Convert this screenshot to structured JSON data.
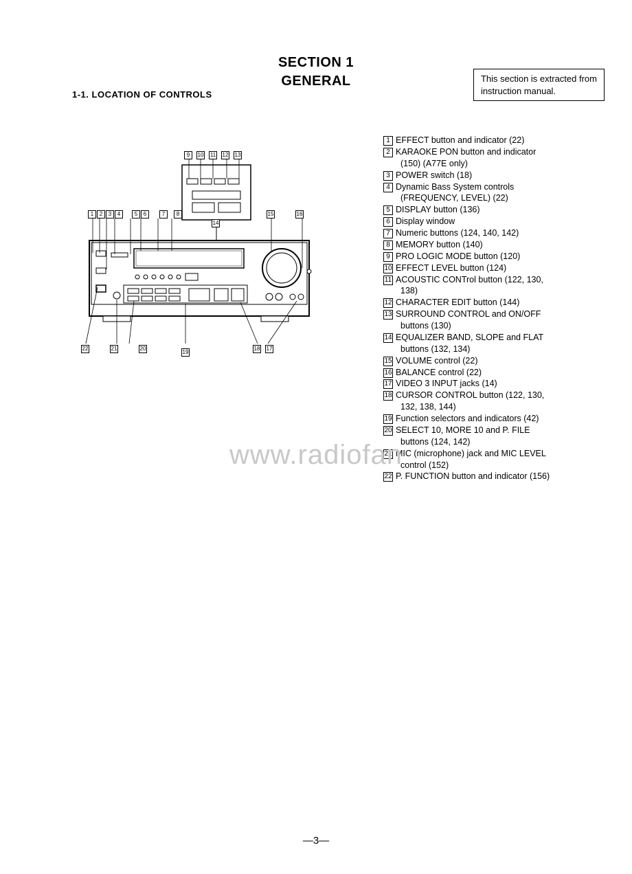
{
  "header": {
    "section_line1": "SECTION 1",
    "section_line2": "GENERAL",
    "note_line1": "This section is extracted from",
    "note_line2": "instruction manual.",
    "subsection": "1-1.   LOCATION OF CONTROLS"
  },
  "watermark": "www.radiofan",
  "page_number": "—3—",
  "diagram": {
    "top_callouts": [
      "9",
      "10",
      "11",
      "12",
      "13"
    ],
    "mid_callouts": [
      "1",
      "2",
      "3",
      "4",
      "5",
      "6",
      "7",
      "8"
    ],
    "right_callouts": [
      "15",
      "16"
    ],
    "bottom_callouts_left": [
      "22",
      "21",
      "20"
    ],
    "bottom_callouts_mid": [
      "19"
    ],
    "bottom_callouts_right": [
      "18",
      "17"
    ],
    "inset_callout": "14",
    "colors": {
      "stroke": "#000",
      "fill": "#fff"
    }
  },
  "legend": [
    {
      "n": "1",
      "t": "EFFECT button and indicator (22)"
    },
    {
      "n": "2",
      "t": "KARAOKE PON button and indicator",
      "c": "(150) (A77E only)"
    },
    {
      "n": "3",
      "t": "POWER switch (18)"
    },
    {
      "n": "4",
      "t": "Dynamic Bass System controls",
      "c": "(FREQUENCY, LEVEL) (22)"
    },
    {
      "n": "5",
      "t": "DISPLAY button (136)"
    },
    {
      "n": "6",
      "t": "Display window"
    },
    {
      "n": "7",
      "t": "Numeric buttons (124, 140, 142)"
    },
    {
      "n": "8",
      "t": "MEMORY button (140)"
    },
    {
      "n": "9",
      "t": "PRO LOGIC MODE button (120)"
    },
    {
      "n": "10",
      "t": "EFFECT LEVEL button (124)"
    },
    {
      "n": "11",
      "t": "ACOUSTIC CONTrol button (122, 130,",
      "c": "138)"
    },
    {
      "n": "12",
      "t": "CHARACTER EDIT button (144)"
    },
    {
      "n": "13",
      "t": "SURROUND CONTROL and ON/OFF",
      "c": "buttons (130)"
    },
    {
      "n": "14",
      "t": "EQUALIZER BAND, SLOPE and FLAT",
      "c": "buttons (132, 134)"
    },
    {
      "n": "15",
      "t": "VOLUME control (22)"
    },
    {
      "n": "16",
      "t": "BALANCE control (22)"
    },
    {
      "n": "17",
      "t": "VIDEO 3 INPUT jacks (14)"
    },
    {
      "n": "18",
      "t": "CURSOR CONTROL button (122, 130,",
      "c": "132, 138, 144)"
    },
    {
      "n": "19",
      "t": "Function selectors and indicators (42)"
    },
    {
      "n": "20",
      "t": "SELECT 10, MORE 10 and P. FILE",
      "c": "buttons (124, 142)"
    },
    {
      "n": "21",
      "t": "MIC (microphone) jack and MIC LEVEL",
      "c": "control (152)"
    },
    {
      "n": "22",
      "t": "P. FUNCTION button and indicator (156)"
    }
  ]
}
